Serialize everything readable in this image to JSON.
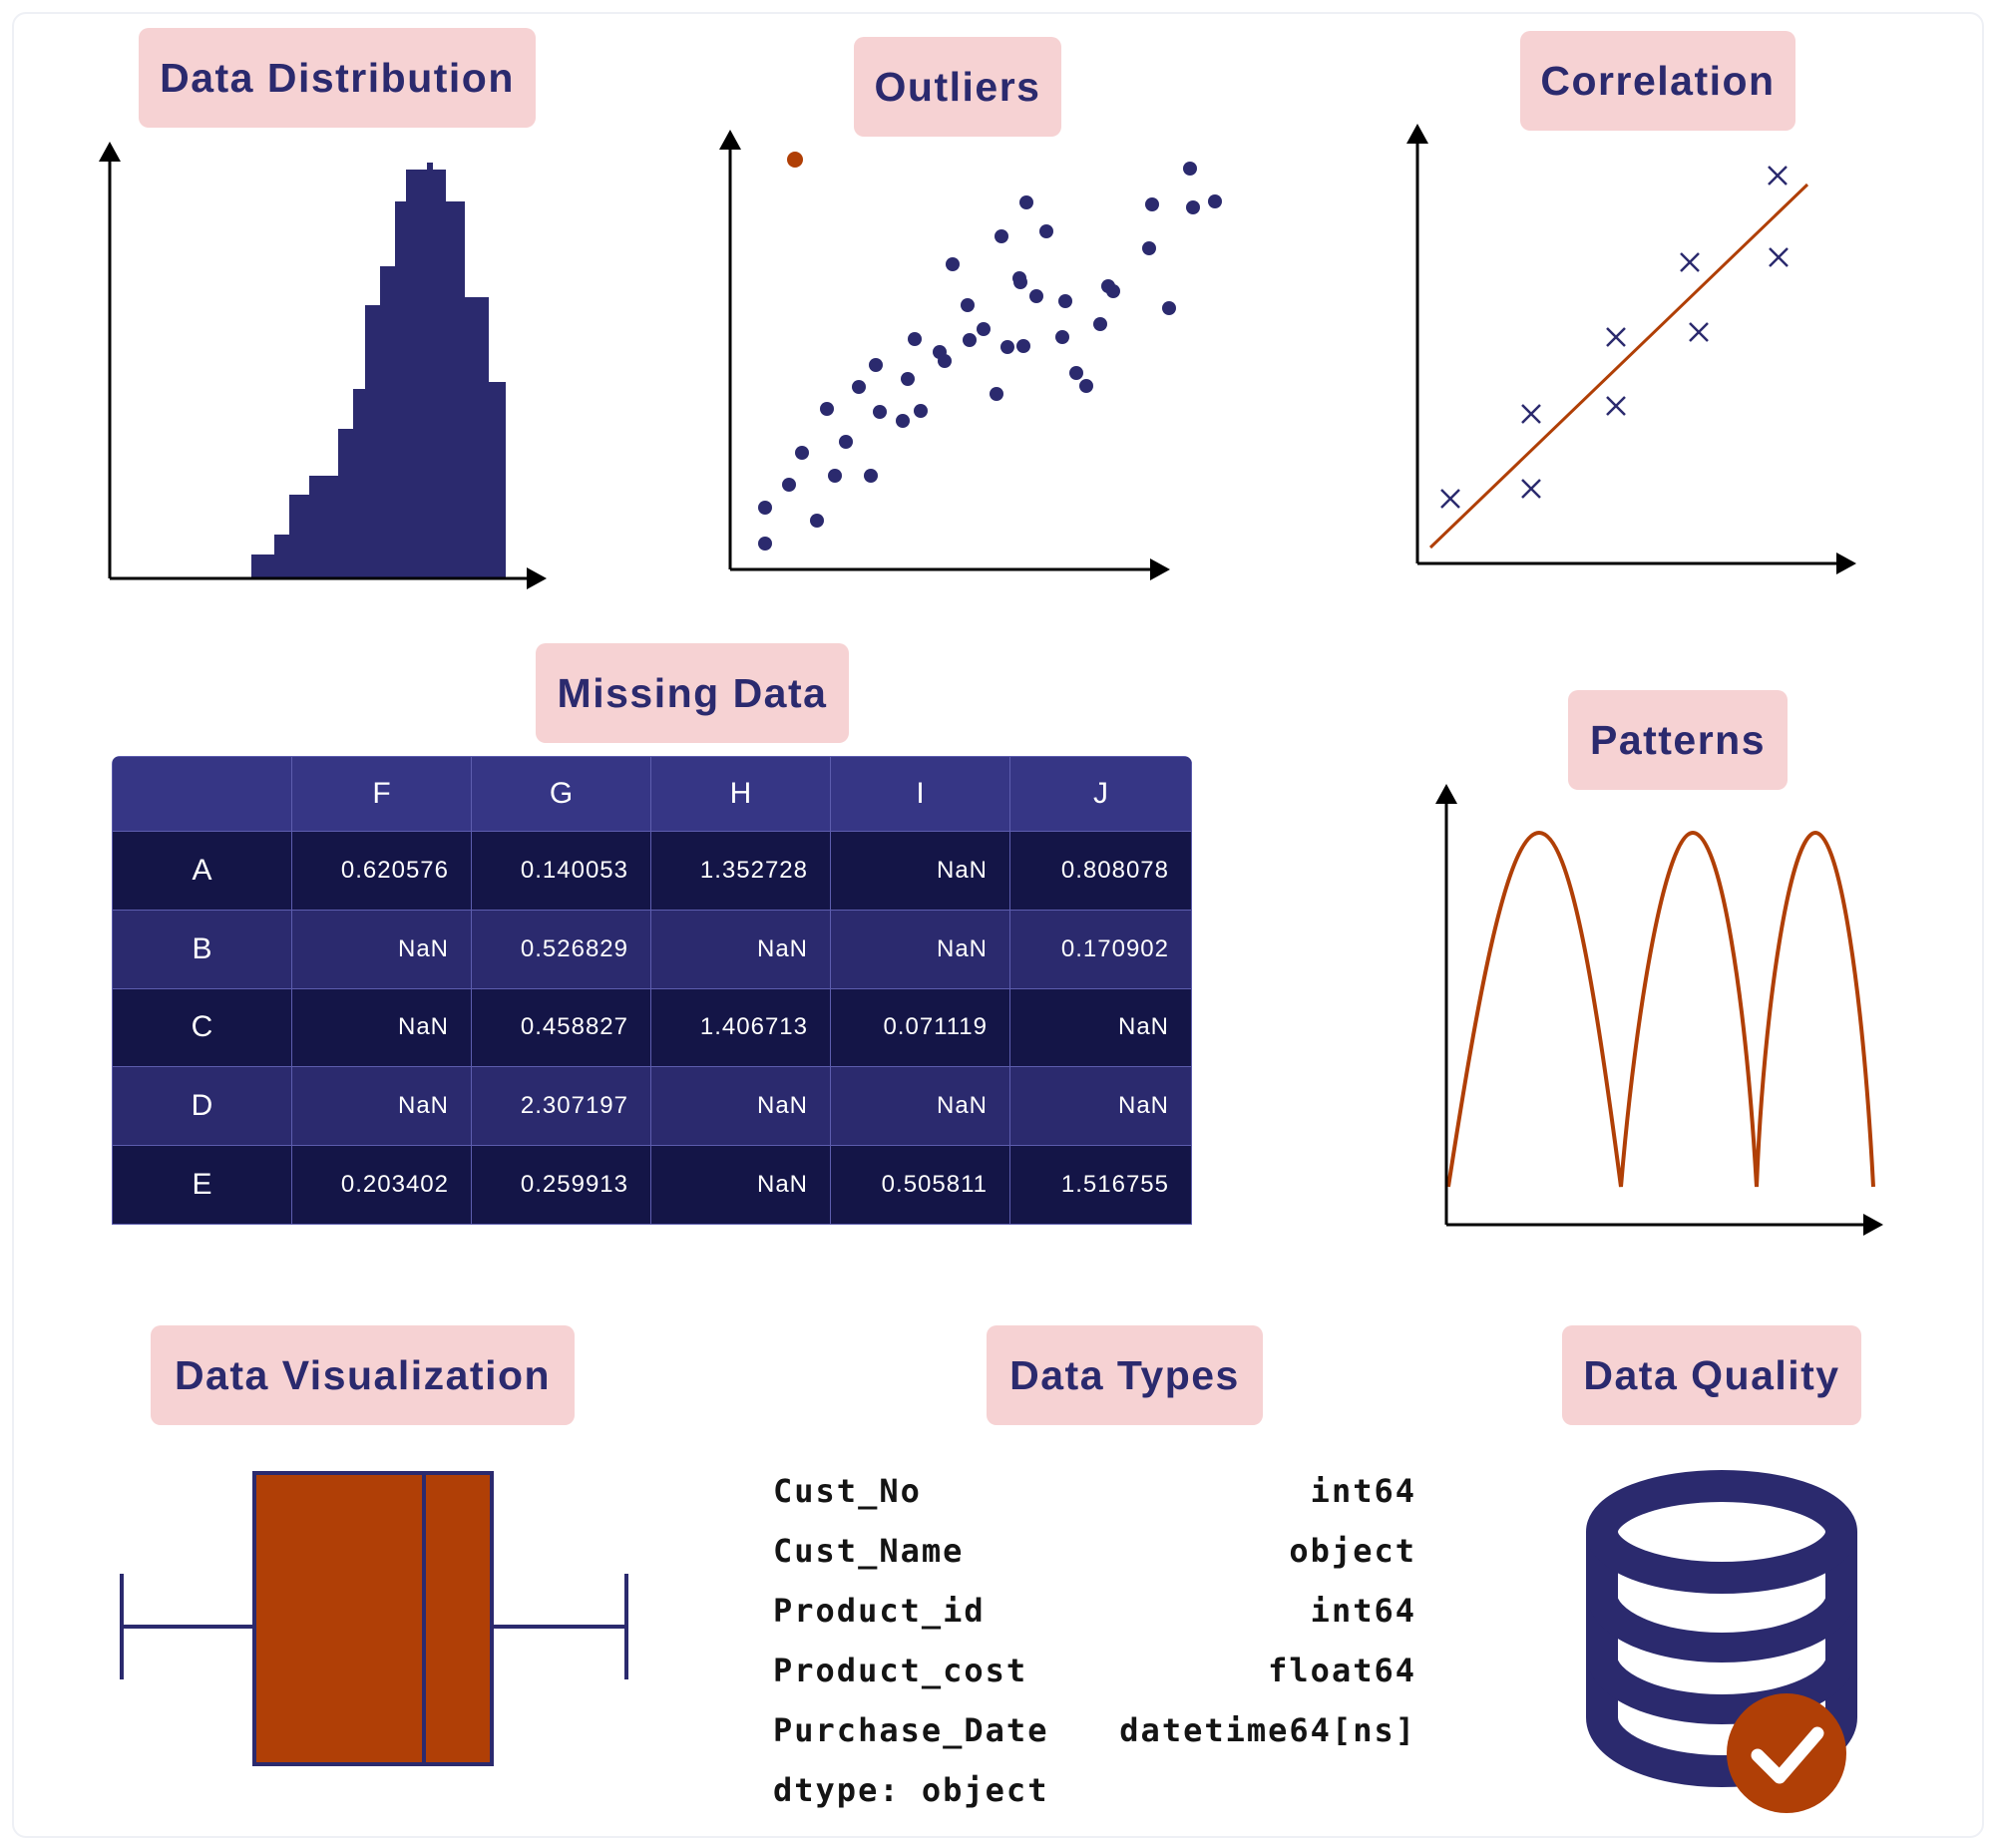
{
  "labels": {
    "distribution": "Data Distribution",
    "outliers": "Outliers",
    "correlation": "Correlation",
    "missing": "Missing Data",
    "patterns": "Patterns",
    "visualization": "Data Visualization",
    "types": "Data Types",
    "quality": "Data Quality"
  },
  "colors": {
    "navy": "#2b2a6e",
    "dark_navy": "#141547",
    "rust": "#b03f06",
    "pill": "#f6d2d3"
  },
  "missing_table": {
    "columns": [
      "",
      "F",
      "G",
      "H",
      "I",
      "J"
    ],
    "rows": [
      {
        "index": "A",
        "values": [
          "0.620576",
          "0.140053",
          "1.352728",
          "NaN",
          "0.808078"
        ]
      },
      {
        "index": "B",
        "values": [
          "NaN",
          "0.526829",
          "NaN",
          "NaN",
          "0.170902"
        ]
      },
      {
        "index": "C",
        "values": [
          "NaN",
          "0.458827",
          "1.406713",
          "0.071119",
          "NaN"
        ]
      },
      {
        "index": "D",
        "values": [
          "NaN",
          "2.307197",
          "NaN",
          "NaN",
          "NaN"
        ]
      },
      {
        "index": "E",
        "values": [
          "0.203402",
          "0.259913",
          "NaN",
          "0.505811",
          "1.516755"
        ]
      }
    ]
  },
  "data_types": {
    "rows": [
      {
        "name": "Cust_No",
        "dtype": "int64"
      },
      {
        "name": "Cust_Name",
        "dtype": "object"
      },
      {
        "name": "Product_id",
        "dtype": "int64"
      },
      {
        "name": "Product_cost",
        "dtype": "float64"
      },
      {
        "name": "Purchase_Date",
        "dtype": "datetime64[ns]"
      }
    ],
    "footer": "dtype: object"
  },
  "icons": {
    "quality": "database-check-icon"
  }
}
